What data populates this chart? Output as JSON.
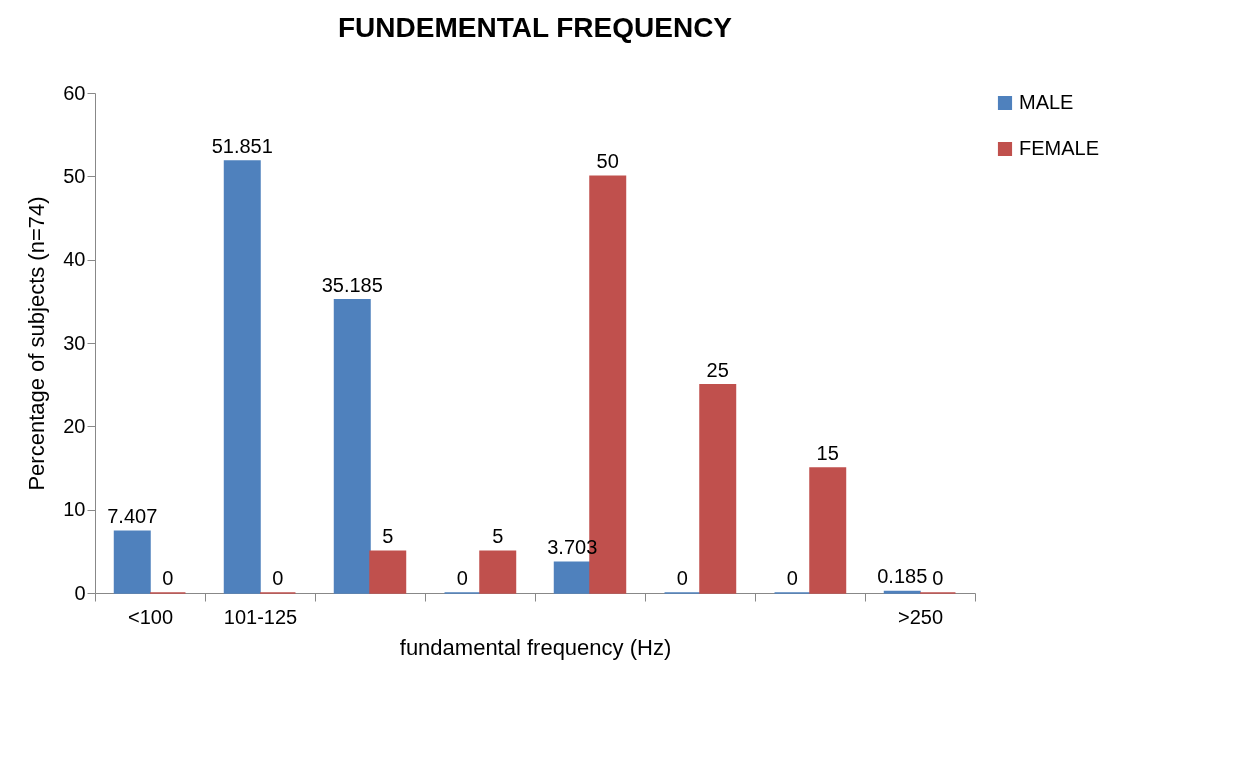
{
  "chart_data": {
    "type": "bar",
    "title": "FUNDEMENTAL FREQUENCY",
    "xlabel": "fundamental frequency (Hz)",
    "ylabel": "Percentage of subjects (n=74)",
    "categories": [
      "<100",
      "101-125",
      null,
      null,
      null,
      null,
      null,
      ">250"
    ],
    "series": [
      {
        "name": "MALE",
        "color": "#4f81bd",
        "values": [
          7.407,
          51.851,
          35.185,
          0,
          3.703,
          0,
          0,
          0.185
        ]
      },
      {
        "name": "FEMALE",
        "color": "#c0504d",
        "values": [
          0,
          0,
          5,
          5,
          50,
          25,
          15,
          0
        ]
      }
    ],
    "ylim": [
      0,
      60
    ],
    "yticks": [
      0,
      10,
      20,
      30,
      40,
      50,
      60
    ],
    "grid": false,
    "legend": "right",
    "data_labels": true
  }
}
